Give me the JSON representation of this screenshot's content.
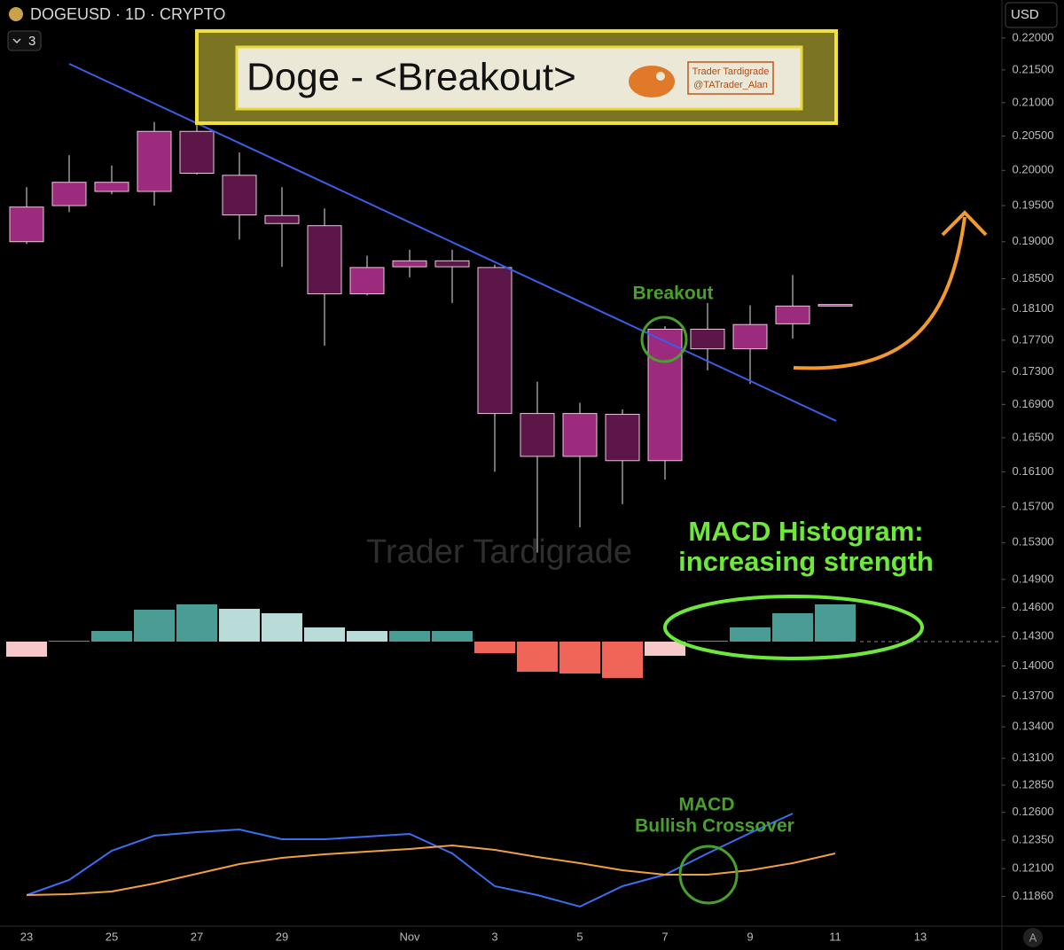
{
  "header": {
    "symbol": "DOGEUSD · 1D · CRYPTO",
    "layouts": "3",
    "currency": "USD",
    "auto": "A"
  },
  "chart_data": [
    {
      "type": "candlestick",
      "title": "Doge - <Breakout>",
      "author": "Trader Tardigrade",
      "handle": "@TATrader_Alan",
      "watermark": "Trader Tardigrade",
      "annotations": [
        "Breakout",
        "MACD Histogram:",
        "increasing strength",
        "MACD",
        "Bullish Crossover"
      ],
      "categories": [
        "23",
        null,
        "25",
        null,
        "27",
        null,
        "29",
        null,
        null,
        "Nov",
        null,
        "3",
        null,
        "5",
        null,
        "7",
        null,
        "9",
        null,
        "11",
        null,
        "13"
      ],
      "open": [
        0.19,
        0.195,
        0.197,
        0.197,
        0.2057,
        0.1993,
        0.1936,
        0.1922,
        0.183,
        0.1866,
        0.1874,
        0.1865,
        0.1679,
        0.1628,
        0.1678,
        0.1623,
        0.1784,
        0.1759,
        0.1791,
        0.1814,
        null,
        null
      ],
      "high": [
        0.1976,
        0.2022,
        0.2007,
        0.2071,
        0.2068,
        0.2026,
        0.1976,
        0.1946,
        0.1881,
        0.1889,
        0.1889,
        0.1869,
        0.1718,
        0.1692,
        0.1684,
        0.1788,
        0.1818,
        0.1815,
        0.1855,
        0.1816,
        null,
        null
      ],
      "low": [
        0.1897,
        0.1941,
        0.1966,
        0.195,
        0.1994,
        0.1903,
        0.1866,
        0.1763,
        0.1828,
        0.1852,
        0.1818,
        0.161,
        0.1519,
        0.1547,
        0.1573,
        0.1601,
        0.1732,
        0.1715,
        0.1772,
        0.1814,
        null,
        null
      ],
      "close": [
        0.1948,
        0.1983,
        0.1983,
        0.2057,
        0.1996,
        0.1937,
        0.1925,
        0.183,
        0.1865,
        0.1874,
        0.1866,
        0.1679,
        0.1628,
        0.1679,
        0.1623,
        0.1784,
        0.1759,
        0.179,
        0.1814,
        0.1816,
        null,
        null
      ],
      "up_color": "#9c2a7d",
      "down_color": "#5c1748",
      "log_scale": true,
      "ylim": [
        0.1161,
        0.2261
      ],
      "yticks": [
        {
          "value": 0.22,
          "label": "0.22000"
        },
        {
          "value": 0.215,
          "label": "0.21500"
        },
        {
          "value": 0.21,
          "label": "0.21000"
        },
        {
          "value": 0.205,
          "label": "0.20500"
        },
        {
          "value": 0.2,
          "label": "0.20000"
        },
        {
          "value": 0.195,
          "label": "0.19500"
        },
        {
          "value": 0.19,
          "label": "0.19000"
        },
        {
          "value": 0.185,
          "label": "0.18500"
        },
        {
          "value": 0.181,
          "label": "0.18100"
        },
        {
          "value": 0.177,
          "label": "0.17700"
        },
        {
          "value": 0.173,
          "label": "0.17300"
        },
        {
          "value": 0.169,
          "label": "0.16900"
        },
        {
          "value": 0.165,
          "label": "0.16500"
        },
        {
          "value": 0.161,
          "label": "0.16100"
        },
        {
          "value": 0.157,
          "label": "0.15700"
        },
        {
          "value": 0.153,
          "label": "0.15300"
        },
        {
          "value": 0.149,
          "label": "0.14900"
        },
        {
          "value": 0.146,
          "label": "0.14600"
        },
        {
          "value": 0.143,
          "label": "0.14300"
        },
        {
          "value": 0.14,
          "label": "0.14000"
        },
        {
          "value": 0.137,
          "label": "0.13700"
        },
        {
          "value": 0.134,
          "label": "0.13400"
        },
        {
          "value": 0.131,
          "label": "0.13100"
        },
        {
          "value": 0.1285,
          "label": "0.12850"
        },
        {
          "value": 0.126,
          "label": "0.12600"
        },
        {
          "value": 0.1235,
          "label": "0.12350"
        },
        {
          "value": 0.121,
          "label": "0.12100"
        },
        {
          "value": 0.1186,
          "label": "0.11860"
        }
      ]
    },
    {
      "type": "bar",
      "values": [
        -17,
        1,
        12,
        36,
        42,
        37,
        32,
        16,
        12,
        12,
        12,
        -13,
        -34,
        -36,
        -41,
        -16,
        1,
        16,
        32,
        42,
        null,
        null
      ],
      "colors": [
        "#f7c8c8",
        "#4a9d94",
        "#4a9d94",
        "#4a9d94",
        "#4a9d94",
        "#b9dcd8",
        "#b9dcd8",
        "#b9dcd8",
        "#b9dcd8",
        "#4a9d94",
        "#4a9d94",
        "#ef6558",
        "#ef6558",
        "#ef6558",
        "#ef6558",
        "#f7c8c8",
        "#4a9d94",
        "#4a9d94",
        "#4a9d94",
        "#4a9d94",
        null,
        null
      ],
      "ylim": [
        -60,
        60
      ]
    },
    {
      "type": "line",
      "series": [
        {
          "color": "#3b6ef0",
          "values": [
            35,
            52,
            85,
            102,
            106,
            109,
            98,
            98,
            101,
            104,
            82,
            45,
            35,
            22,
            45,
            58,
            82,
            105,
            127,
            null,
            null,
            null
          ]
        },
        {
          "color": "#f0a040",
          "values": [
            35,
            36,
            39,
            48,
            59,
            70,
            77,
            81,
            84,
            87,
            91,
            86,
            78,
            71,
            63,
            58,
            58,
            63,
            71,
            82,
            null,
            null
          ]
        }
      ],
      "ylim": [
        0,
        140
      ]
    }
  ]
}
